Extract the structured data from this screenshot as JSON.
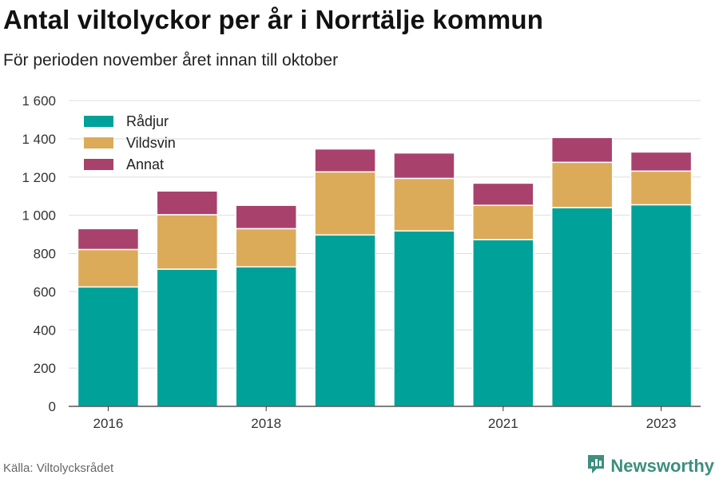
{
  "title": "Antal viltolyckor per år i Norrtälje kommun",
  "subtitle": "För perioden november året innan till oktober",
  "source": "Källa: Viltolycksrådet",
  "brand": {
    "name": "Newsworthy",
    "icon": "newsworthy-logo-icon",
    "color": "#3d8f7e"
  },
  "chart_data": {
    "type": "bar",
    "stacked": true,
    "categories": [
      "2016",
      "2017",
      "2018",
      "2019",
      "2020",
      "2021",
      "2022",
      "2023"
    ],
    "x_tick_labels": [
      "2016",
      "",
      "2018",
      "",
      "",
      "2021",
      "",
      "2023"
    ],
    "series": [
      {
        "name": "Rådjur",
        "color": "#00a198",
        "values": [
          625,
          718,
          730,
          897,
          918,
          872,
          1040,
          1055
        ]
      },
      {
        "name": "Vildsvin",
        "color": "#dbab5a",
        "values": [
          196,
          285,
          200,
          330,
          275,
          180,
          237,
          176
        ]
      },
      {
        "name": "Annat",
        "color": "#a8426c",
        "values": [
          109,
          124,
          122,
          120,
          133,
          116,
          130,
          100
        ]
      }
    ],
    "ylim": [
      0,
      1600
    ],
    "yticks": [
      0,
      200,
      400,
      600,
      800,
      1000,
      1200,
      1400,
      1600
    ],
    "ytick_labels": [
      "0",
      "200",
      "400",
      "600",
      "800",
      "1 000",
      "1 200",
      "1 400",
      "1 600"
    ],
    "xlabel": "",
    "ylabel": "",
    "grid": true,
    "legend_position": "top-left"
  }
}
